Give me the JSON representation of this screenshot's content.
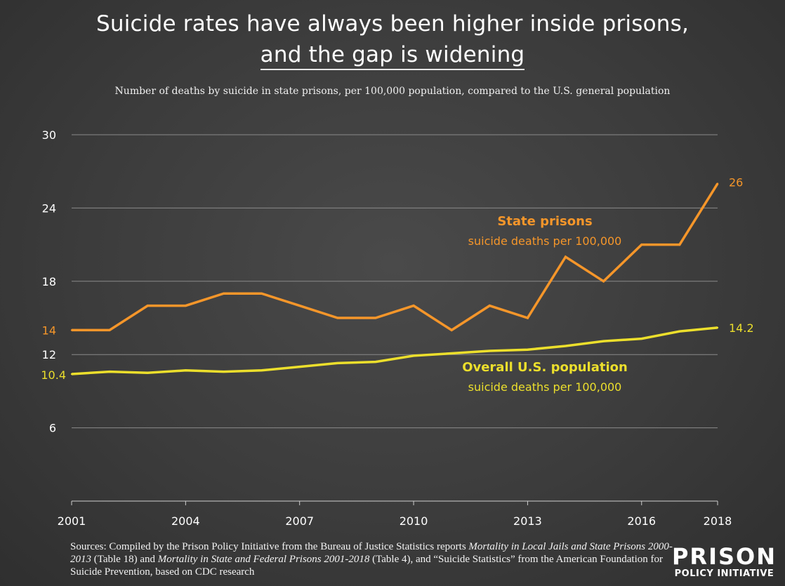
{
  "title_line1": "Suicide rates have always been higher inside prisons,",
  "title_line2": "and the gap is widening",
  "subtitle": "Number of deaths by suicide in state prisons, per 100,000 population, compared to the U.S. general population",
  "sources": {
    "prefix": "Sources: Compiled by the Prison Policy Initiative from the Bureau of Justice Statistics reports ",
    "report1": "Mortality in Local Jails and State Prisons 2000-2013",
    "mid1": " (Table 18) and ",
    "report2": "Mortality in State and Federal Prisons 2001-2018",
    "mid2": " (Table 4), and “Suicide Statistics” from the American Foundation for Suicide Prevention, based on CDC research"
  },
  "logo": {
    "line1": "PRISON",
    "line2": "POLICY INITIATIVE"
  },
  "colors": {
    "prisons": "#f5962a",
    "population": "#ecdf2c",
    "grid": "#8a8a8a",
    "background": "#3f3f3f"
  },
  "chart_data": {
    "type": "line",
    "x": [
      2001,
      2002,
      2003,
      2004,
      2005,
      2006,
      2007,
      2008,
      2009,
      2010,
      2011,
      2012,
      2013,
      2014,
      2015,
      2016,
      2017,
      2018
    ],
    "x_ticks": [
      "2001",
      "2004",
      "2007",
      "2010",
      "2013",
      "2016",
      "2018"
    ],
    "x_tick_values": [
      2001,
      2004,
      2007,
      2010,
      2013,
      2016,
      2018
    ],
    "y_ticks": [
      "30",
      "24",
      "18",
      "12",
      "6"
    ],
    "y_tick_values": [
      30,
      24,
      18,
      12,
      6
    ],
    "ylim": [
      0,
      30
    ],
    "grid": true,
    "series": [
      {
        "name": "State prisons",
        "sublabel": "suicide deaths per 100,000",
        "values": [
          14,
          14,
          16,
          16,
          17,
          17,
          16,
          15,
          15,
          16,
          14,
          16,
          15,
          20,
          18,
          21,
          21,
          26
        ],
        "start_label": "14",
        "end_label": "26"
      },
      {
        "name": "Overall U.S. population",
        "sublabel": "suicide deaths per 100,000",
        "values": [
          10.4,
          10.6,
          10.5,
          10.7,
          10.6,
          10.7,
          11.0,
          11.3,
          11.4,
          11.9,
          12.1,
          12.3,
          12.4,
          12.7,
          13.1,
          13.3,
          13.9,
          14.2
        ],
        "start_label": "10.4",
        "end_label": "14.2"
      }
    ]
  }
}
